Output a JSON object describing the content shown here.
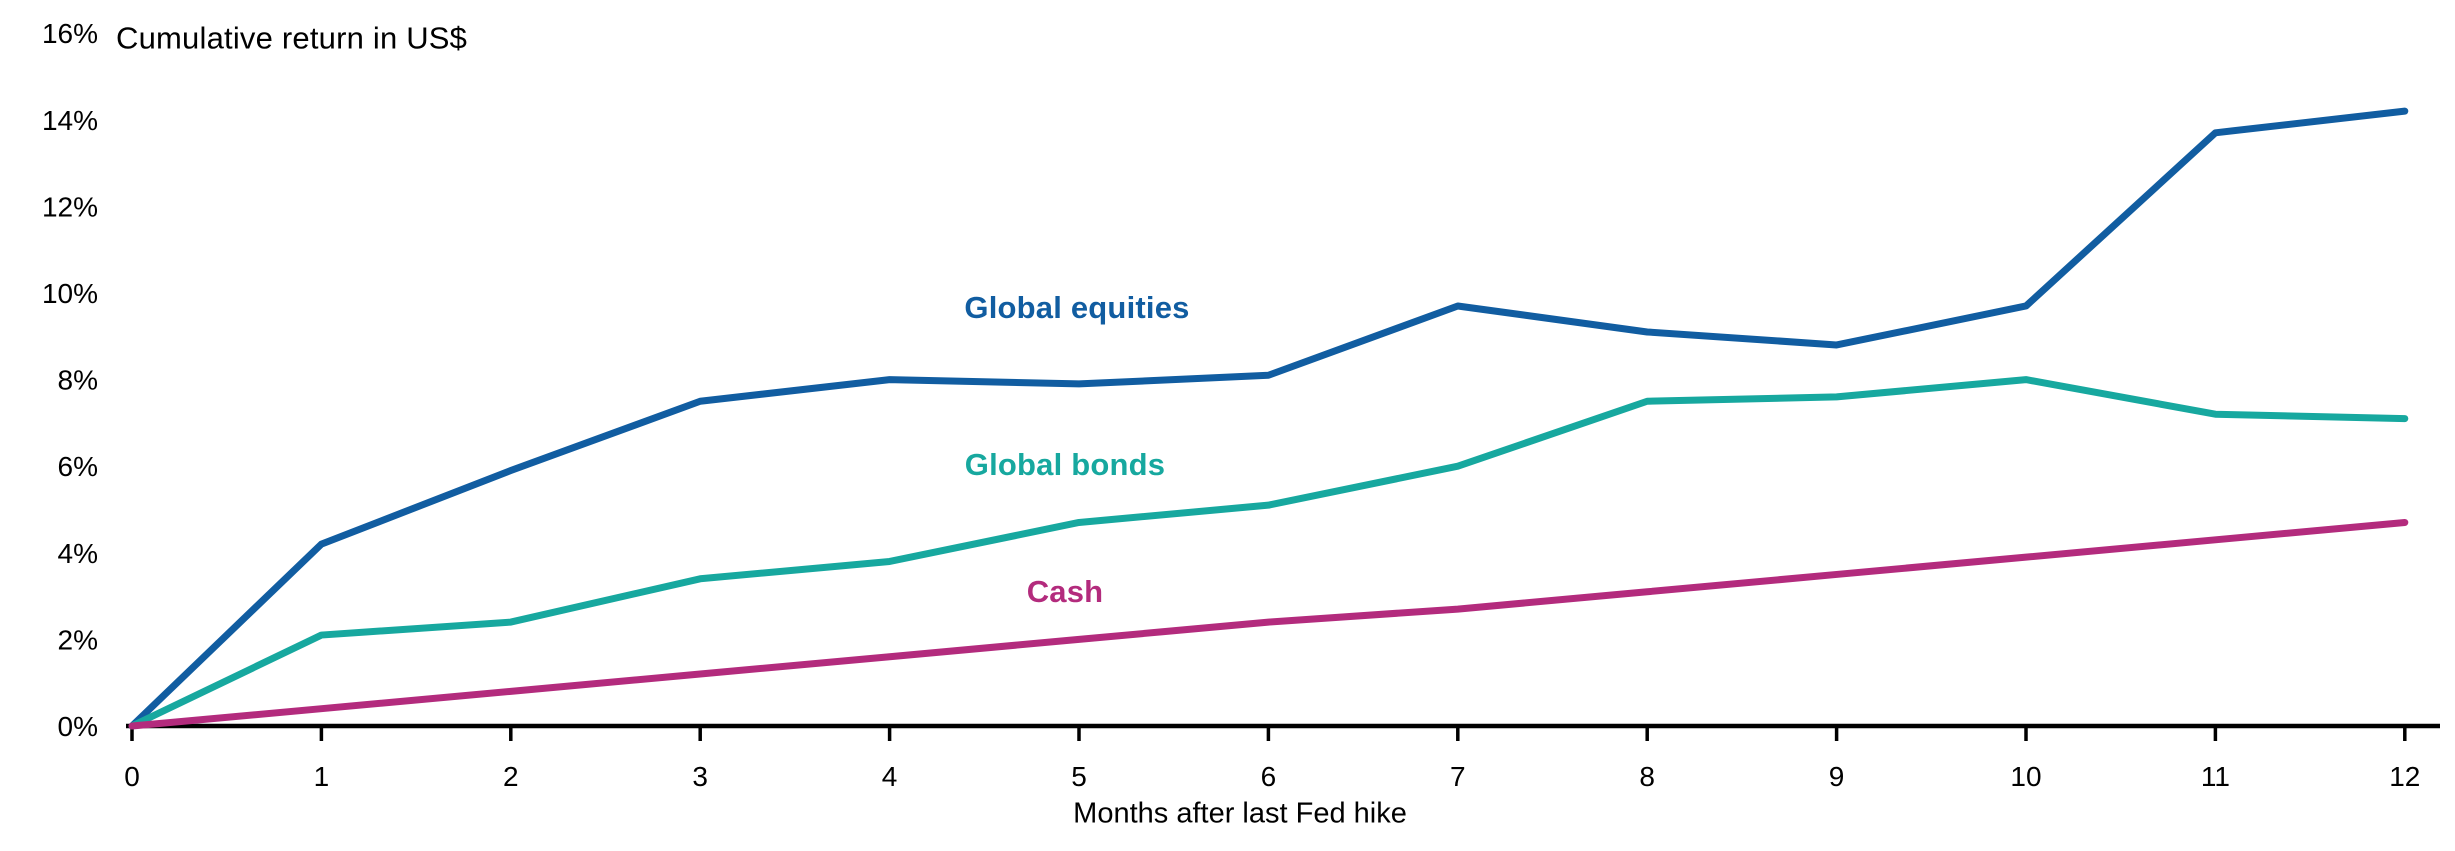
{
  "title": "Cumulative return in US$",
  "x_axis": {
    "label": "Months after last Fed hike",
    "ticks": [
      {
        "label": "0",
        "value": 0
      },
      {
        "label": "1",
        "value": 1
      },
      {
        "label": "2",
        "value": 2
      },
      {
        "label": "3",
        "value": 3
      },
      {
        "label": "4",
        "value": 4
      },
      {
        "label": "5",
        "value": 5
      },
      {
        "label": "6",
        "value": 6
      },
      {
        "label": "7",
        "value": 7
      },
      {
        "label": "8",
        "value": 8
      },
      {
        "label": "9",
        "value": 9
      },
      {
        "label": "10",
        "value": 10
      },
      {
        "label": "11",
        "value": 11
      },
      {
        "label": "12",
        "value": 12
      }
    ]
  },
  "y_axis": {
    "ticks": [
      {
        "label": "0%",
        "value": 0
      },
      {
        "label": "2%",
        "value": 2
      },
      {
        "label": "4%",
        "value": 4
      },
      {
        "label": "6%",
        "value": 6
      },
      {
        "label": "8%",
        "value": 8
      },
      {
        "label": "10%",
        "value": 10
      },
      {
        "label": "12%",
        "value": 12
      },
      {
        "label": "14%",
        "value": 14
      },
      {
        "label": "16%",
        "value": 16
      }
    ]
  },
  "axis_color": "#000000",
  "chart_data": {
    "type": "line",
    "title": "Cumulative return in US$",
    "xlabel": "Months after last Fed hike",
    "ylabel": "Cumulative return in US$",
    "xlim": [
      0,
      12
    ],
    "ylim": [
      0,
      16
    ],
    "grid": false,
    "legend_position": "inline-labels-on-plot",
    "x": [
      0,
      1,
      2,
      3,
      4,
      5,
      6,
      7,
      8,
      9,
      10,
      11,
      12
    ],
    "series": [
      {
        "name": "Global equities",
        "color": "#115DA1",
        "values": [
          0,
          4.2,
          5.9,
          7.5,
          8.0,
          7.9,
          8.1,
          9.7,
          9.1,
          8.8,
          9.7,
          13.7,
          14.2
        ]
      },
      {
        "name": "Global bonds",
        "color": "#17A89F",
        "values": [
          0,
          2.1,
          2.4,
          3.4,
          3.8,
          4.7,
          5.1,
          6.0,
          7.5,
          7.6,
          8.0,
          7.2,
          7.1
        ]
      },
      {
        "name": "Cash",
        "color": "#B32B7D",
        "values": [
          0,
          0.4,
          0.8,
          1.2,
          1.6,
          2.0,
          2.4,
          2.7,
          3.1,
          3.5,
          3.9,
          4.3,
          4.7
        ]
      }
    ]
  }
}
